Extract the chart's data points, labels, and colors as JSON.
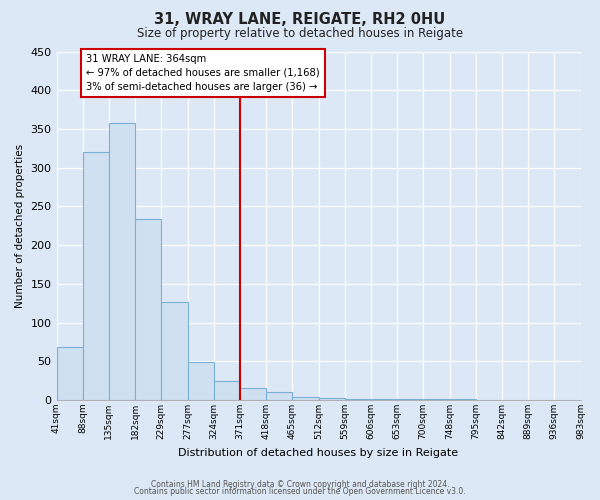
{
  "title": "31, WRAY LANE, REIGATE, RH2 0HU",
  "subtitle": "Size of property relative to detached houses in Reigate",
  "xlabel": "Distribution of detached houses by size in Reigate",
  "ylabel": "Number of detached properties",
  "bar_values": [
    68,
    320,
    358,
    234,
    126,
    49,
    24,
    15,
    10,
    4,
    2,
    1,
    1,
    1,
    1,
    1,
    0,
    0,
    0,
    0
  ],
  "bin_labels": [
    "41sqm",
    "88sqm",
    "135sqm",
    "182sqm",
    "229sqm",
    "277sqm",
    "324sqm",
    "371sqm",
    "418sqm",
    "465sqm",
    "512sqm",
    "559sqm",
    "606sqm",
    "653sqm",
    "700sqm",
    "748sqm",
    "795sqm",
    "842sqm",
    "889sqm",
    "936sqm",
    "983sqm"
  ],
  "bar_color": "#cfe0f0",
  "bar_edge_color": "#7ab0d4",
  "highlight_line_color": "#cc0000",
  "highlight_bin_index": 7,
  "annotation_line1": "31 WRAY LANE: 364sqm",
  "annotation_line2": "← 97% of detached houses are smaller (1,168)",
  "annotation_line3": "3% of semi-detached houses are larger (36) →",
  "annotation_box_facecolor": "#ffffff",
  "annotation_box_edgecolor": "#cc0000",
  "ylim": [
    0,
    450
  ],
  "yticks": [
    0,
    50,
    100,
    150,
    200,
    250,
    300,
    350,
    400,
    450
  ],
  "background_color": "#dce8f5",
  "footer1": "Contains HM Land Registry data © Crown copyright and database right 2024.",
  "footer2": "Contains public sector information licensed under the Open Government Licence v3.0."
}
